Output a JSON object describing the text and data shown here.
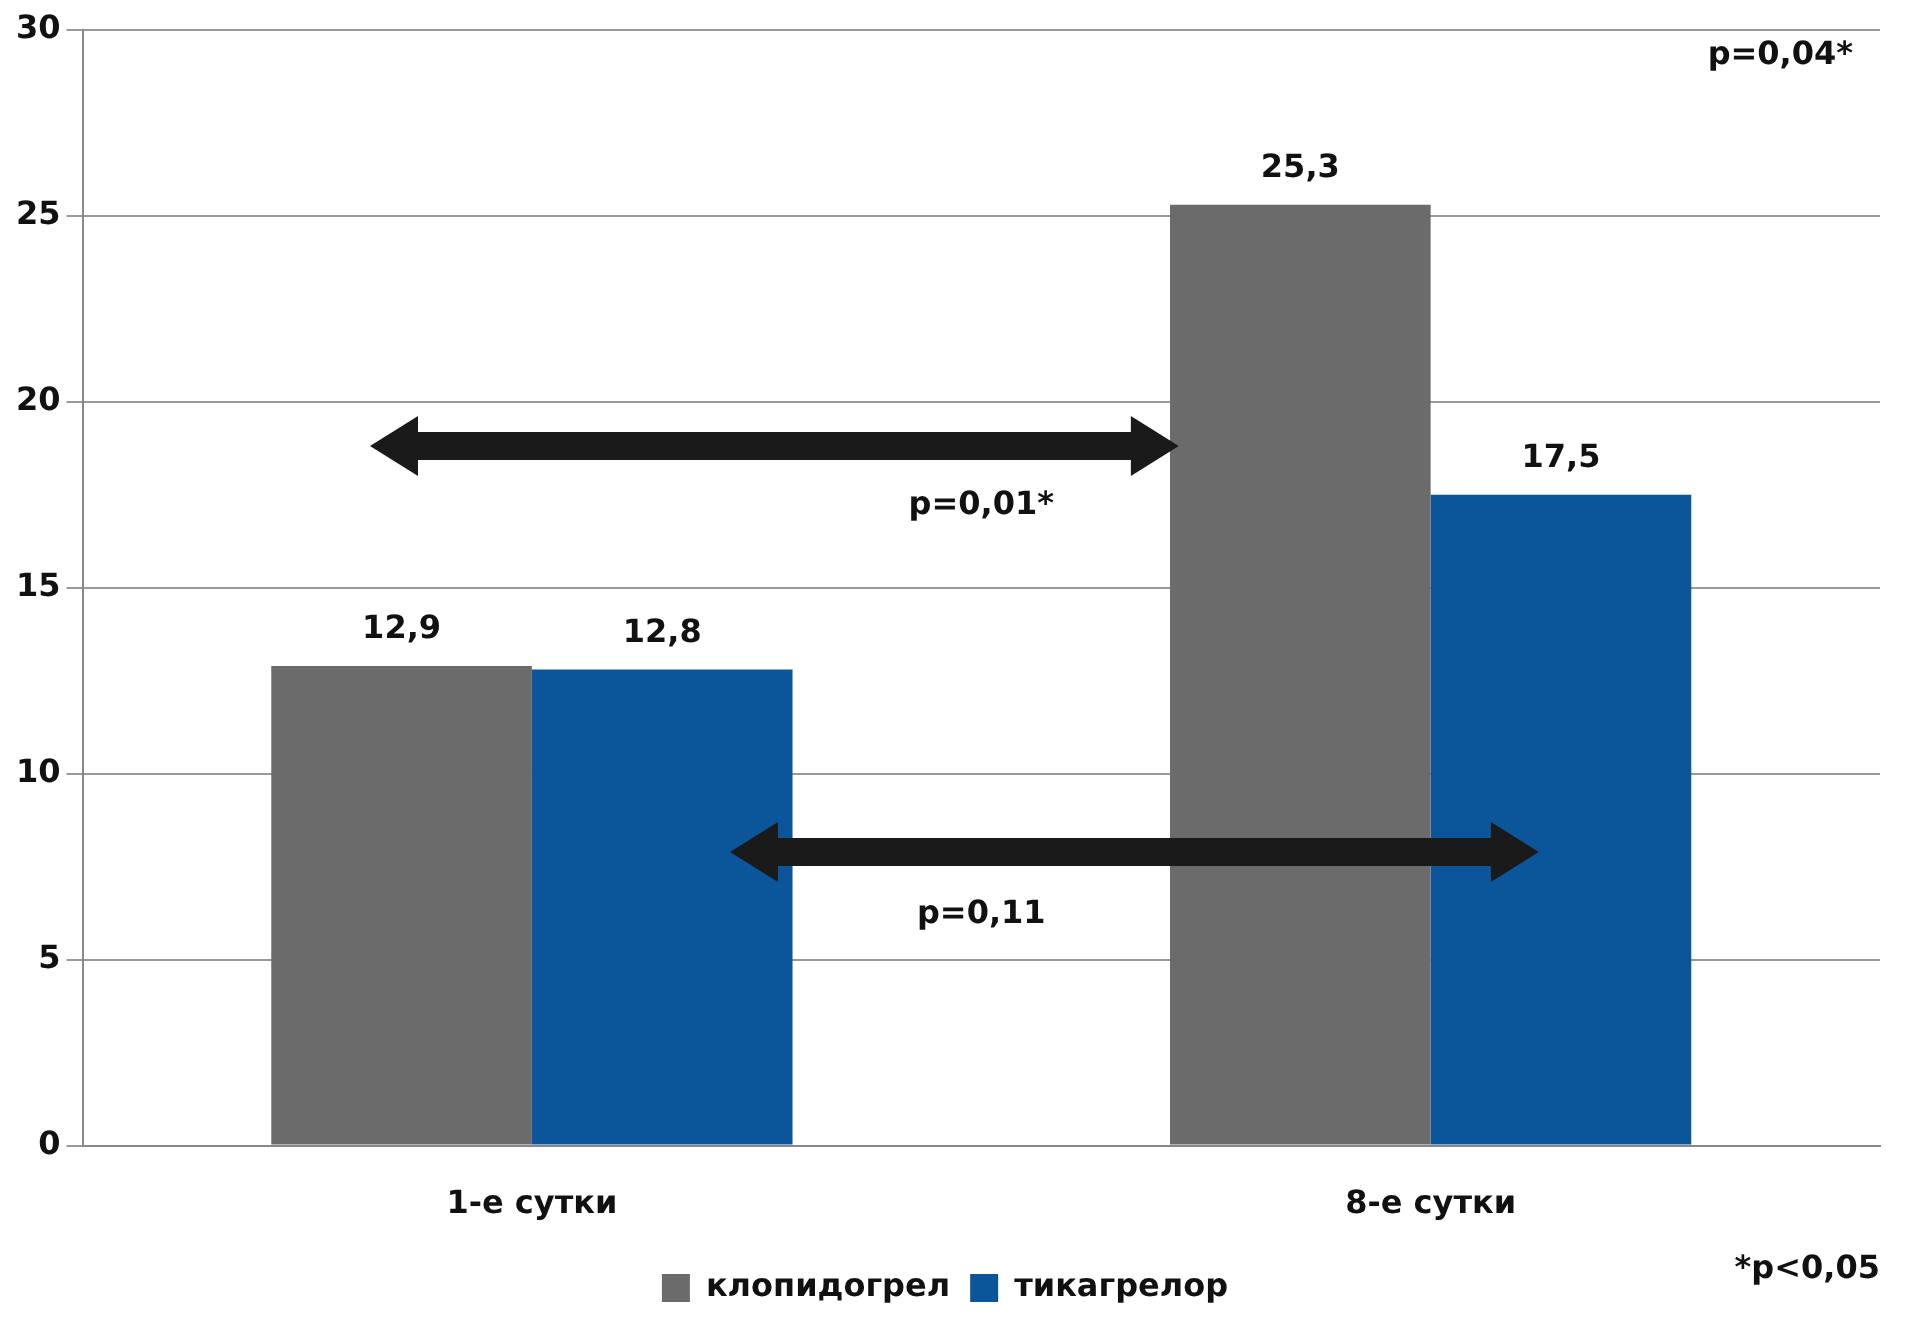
{
  "chart_data": {
    "type": "bar",
    "categories": [
      "1-е сутки",
      "8-е сутки"
    ],
    "series": [
      {
        "name": "клопидогрел",
        "color": "#6b6b6b",
        "values": [
          12.9,
          25.3
        ],
        "value_labels": [
          "12,9",
          "25,3"
        ]
      },
      {
        "name": "тикагрелор",
        "color": "#0b559b",
        "values": [
          12.8,
          17.5
        ],
        "value_labels": [
          "12,8",
          "17,5"
        ]
      }
    ],
    "ylim": [
      0,
      30
    ],
    "yticks": [
      0,
      5,
      10,
      15,
      20,
      25,
      30
    ],
    "grid": "y",
    "legend": "bottom",
    "annotations": [
      "p=0,04*",
      "p=0,01*",
      "p=0,11",
      "*p<0,05"
    ]
  }
}
